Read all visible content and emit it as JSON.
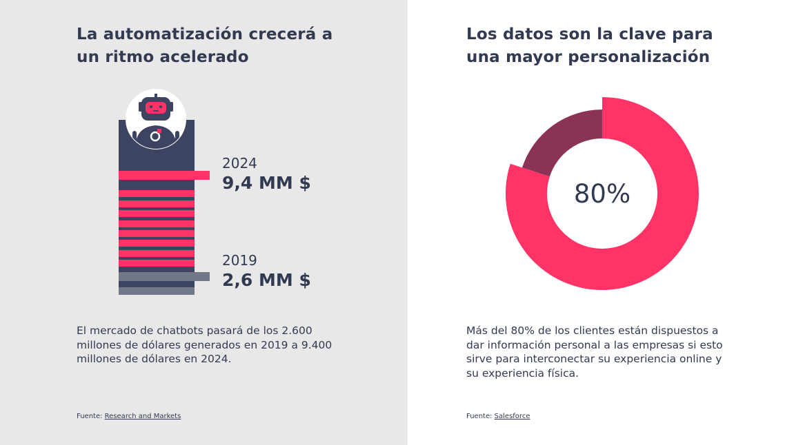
{
  "chart_data": [
    {
      "type": "bar",
      "title": "La automatización crecerá a un ritmo acelerado",
      "categories": [
        "2019",
        "2024"
      ],
      "values": [
        2.6,
        9.4
      ],
      "value_labels": [
        "2,6 MM $",
        "9,4 MM $"
      ],
      "colors": [
        "#727887",
        "#ff3366"
      ]
    },
    {
      "type": "pie",
      "title": "Los datos son la clave para una mayor personalización",
      "values": [
        80,
        20
      ],
      "center_label": "80%",
      "colors": [
        "#ff3366",
        "#8a3356"
      ]
    }
  ],
  "left": {
    "title_line1": "La automatización crecerá a",
    "title_line2": "un ritmo acelerado",
    "description_lines": [
      "El mercado de chatbots pasará de los 2.600",
      "millones de dólares generados en 2019 a 9.400",
      "millones de dólares en 2024."
    ],
    "source_label": "Fuente:",
    "source_link": "Research and Markets"
  },
  "right": {
    "title_line1": "Los datos son la clave para",
    "title_line2": "una mayor personalización",
    "description_lines": [
      "Más del 80% de los clientes están dispuestos a",
      "dar información personal a las empresas si esto",
      "sirve para interconectar su experiencia online y",
      "su experiencia física."
    ],
    "source_label": "Fuente:",
    "source_link": "Salesforce"
  },
  "colors": {
    "navy": "#3d4461",
    "pink": "#ff3366",
    "gray": "#727887",
    "maroon": "#8a3356",
    "text": "#323a52"
  },
  "icons": [
    "robot-icon"
  ]
}
